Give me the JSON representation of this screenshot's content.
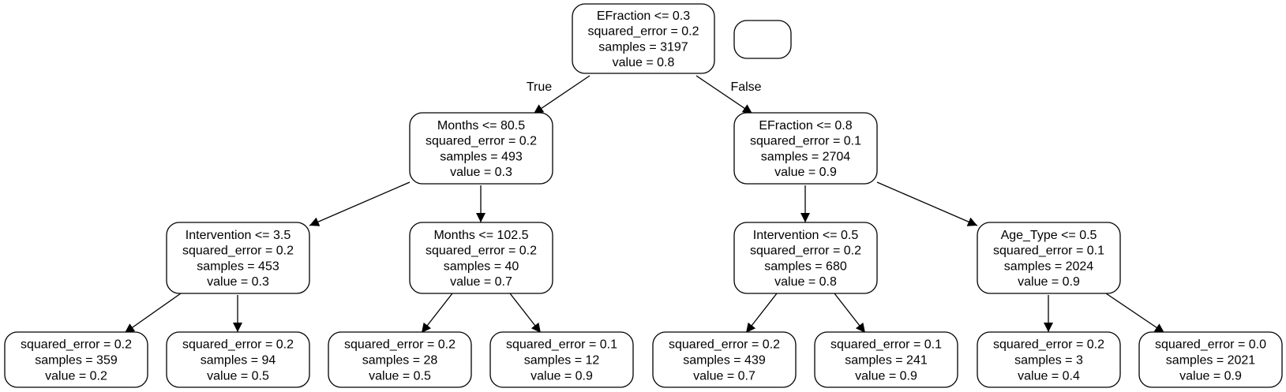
{
  "tree": {
    "nodes": [
      {
        "id": "n0",
        "lines": [
          "EFraction <= 0.3",
          "squared_error = 0.2",
          "samples = 3197",
          "value = 0.8"
        ]
      },
      {
        "id": "legend",
        "lines": []
      },
      {
        "id": "n1",
        "lines": [
          "Months <= 80.5",
          "squared_error = 0.2",
          "samples = 493",
          "value = 0.3"
        ]
      },
      {
        "id": "n2",
        "lines": [
          "EFraction <= 0.8",
          "squared_error = 0.1",
          "samples = 2704",
          "value = 0.9"
        ]
      },
      {
        "id": "n3",
        "lines": [
          "Intervention <= 3.5",
          "squared_error = 0.2",
          "samples = 453",
          "value = 0.3"
        ]
      },
      {
        "id": "n4",
        "lines": [
          "Months <= 102.5",
          "squared_error = 0.2",
          "samples = 40",
          "value = 0.7"
        ]
      },
      {
        "id": "n5",
        "lines": [
          "Intervention <= 0.5",
          "squared_error = 0.2",
          "samples = 680",
          "value = 0.8"
        ]
      },
      {
        "id": "n6",
        "lines": [
          "Age_Type <= 0.5",
          "squared_error = 0.1",
          "samples = 2024",
          "value = 0.9"
        ]
      },
      {
        "id": "n7",
        "lines": [
          "squared_error = 0.2",
          "samples = 359",
          "value = 0.2"
        ]
      },
      {
        "id": "n8",
        "lines": [
          "squared_error = 0.2",
          "samples = 94",
          "value = 0.5"
        ]
      },
      {
        "id": "n9",
        "lines": [
          "squared_error = 0.2",
          "samples = 28",
          "value = 0.5"
        ]
      },
      {
        "id": "n10",
        "lines": [
          "squared_error = 0.1",
          "samples = 12",
          "value = 0.9"
        ]
      },
      {
        "id": "n11",
        "lines": [
          "squared_error = 0.2",
          "samples = 439",
          "value = 0.7"
        ]
      },
      {
        "id": "n12",
        "lines": [
          "squared_error = 0.1",
          "samples = 241",
          "value = 0.9"
        ]
      },
      {
        "id": "n13",
        "lines": [
          "squared_error = 0.2",
          "samples = 3",
          "value = 0.4"
        ]
      },
      {
        "id": "n14",
        "lines": [
          "squared_error = 0.0",
          "samples = 2021",
          "value = 0.9"
        ]
      }
    ],
    "edges": [
      {
        "from": "n0",
        "to": "n1",
        "label": "True"
      },
      {
        "from": "n0",
        "to": "n2",
        "label": "False"
      },
      {
        "from": "n1",
        "to": "n3"
      },
      {
        "from": "n1",
        "to": "n4"
      },
      {
        "from": "n2",
        "to": "n5"
      },
      {
        "from": "n2",
        "to": "n6"
      },
      {
        "from": "n3",
        "to": "n7"
      },
      {
        "from": "n3",
        "to": "n8"
      },
      {
        "from": "n4",
        "to": "n9"
      },
      {
        "from": "n4",
        "to": "n10"
      },
      {
        "from": "n5",
        "to": "n11"
      },
      {
        "from": "n5",
        "to": "n12"
      },
      {
        "from": "n6",
        "to": "n13"
      },
      {
        "from": "n6",
        "to": "n14"
      }
    ]
  }
}
